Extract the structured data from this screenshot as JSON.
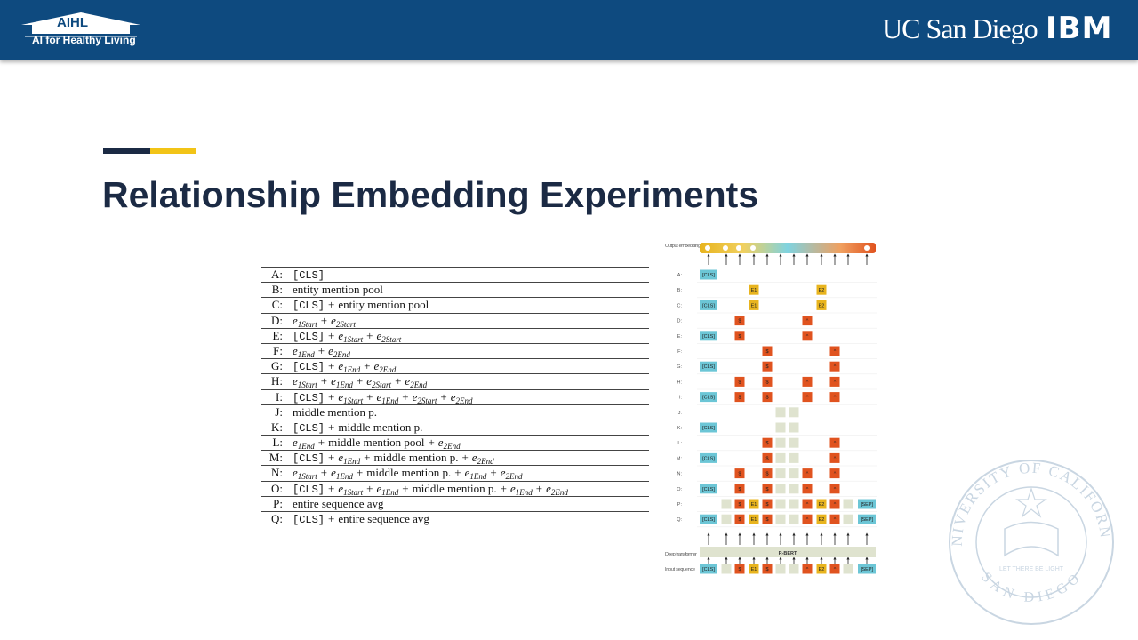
{
  "header": {
    "logo_title": "AIHL",
    "logo_subtitle": "AI for Healthy Living",
    "university": "UC San Diego",
    "company": "IBM"
  },
  "title": "Relationship Embedding Experiments",
  "table": {
    "rows": [
      {
        "label": "A:",
        "terms": [
          "[CLS]"
        ]
      },
      {
        "label": "B:",
        "terms": [
          "entity mention pool"
        ]
      },
      {
        "label": "C:",
        "terms": [
          "[CLS]",
          "entity mention pool"
        ]
      },
      {
        "label": "D:",
        "terms": [
          {
            "base": "e",
            "sub": "1Start"
          },
          {
            "base": "e",
            "sub": "2Start"
          }
        ]
      },
      {
        "label": "E:",
        "terms": [
          "[CLS]",
          {
            "base": "e",
            "sub": "1Start"
          },
          {
            "base": "e",
            "sub": "2Start"
          }
        ]
      },
      {
        "label": "F:",
        "terms": [
          {
            "base": "e",
            "sub": "1End"
          },
          {
            "base": "e",
            "sub": "2End"
          }
        ]
      },
      {
        "label": "G:",
        "terms": [
          "[CLS]",
          {
            "base": "e",
            "sub": "1End"
          },
          {
            "base": "e",
            "sub": "2End"
          }
        ]
      },
      {
        "label": "H:",
        "terms": [
          {
            "base": "e",
            "sub": "1Start"
          },
          {
            "base": "e",
            "sub": "1End"
          },
          {
            "base": "e",
            "sub": "2Start"
          },
          {
            "base": "e",
            "sub": "2End"
          }
        ]
      },
      {
        "label": "I:",
        "terms": [
          "[CLS]",
          {
            "base": "e",
            "sub": "1Start"
          },
          {
            "base": "e",
            "sub": "1End"
          },
          {
            "base": "e",
            "sub": "2Start"
          },
          {
            "base": "e",
            "sub": "2End"
          }
        ]
      },
      {
        "label": "J:",
        "terms": [
          "middle mention p."
        ]
      },
      {
        "label": "K:",
        "terms": [
          "[CLS]",
          "middle mention p."
        ]
      },
      {
        "label": "L:",
        "terms": [
          {
            "base": "e",
            "sub": "1End"
          },
          "middle mention pool",
          {
            "base": "e",
            "sub": "2End"
          }
        ]
      },
      {
        "label": "M:",
        "terms": [
          "[CLS]",
          {
            "base": "e",
            "sub": "1End"
          },
          "middle mention p.",
          {
            "base": "e",
            "sub": "2End"
          }
        ]
      },
      {
        "label": "N:",
        "terms": [
          {
            "base": "e",
            "sub": "1Start"
          },
          {
            "base": "e",
            "sub": "1End"
          },
          "middle mention p.",
          {
            "base": "e",
            "sub": "1End"
          },
          {
            "base": "e",
            "sub": "2End"
          }
        ]
      },
      {
        "label": "O:",
        "terms": [
          "[CLS]",
          {
            "base": "e",
            "sub": "1Start"
          },
          {
            "base": "e",
            "sub": "1End"
          },
          "middle mention p.",
          {
            "base": "e",
            "sub": "1End"
          },
          {
            "base": "e",
            "sub": "2End"
          }
        ]
      },
      {
        "label": "P:",
        "terms": [
          "entire sequence avg"
        ]
      },
      {
        "label": "Q:",
        "terms": [
          "[CLS]",
          "entire sequence avg"
        ]
      }
    ]
  },
  "diagram": {
    "output_label": "Output embedding",
    "transformer_label": "Deep transformer",
    "model_name": "R-BERT",
    "input_label": "Input sequence",
    "input_tokens": [
      "[CLS]",
      "$",
      "E1",
      "$",
      "^",
      "E2",
      "^",
      "[SEP]"
    ],
    "rows": [
      {
        "label": "A:",
        "tokens": [
          "[CLS]"
        ]
      },
      {
        "label": "B:",
        "tokens": [
          "E1",
          "E2"
        ]
      },
      {
        "label": "C:",
        "tokens": [
          "[CLS]",
          "E1",
          "E2"
        ]
      },
      {
        "label": "D:",
        "tokens": [
          "$",
          "^"
        ]
      },
      {
        "label": "E:",
        "tokens": [
          "[CLS]",
          "$",
          "^"
        ]
      },
      {
        "label": "F:",
        "tokens": [
          "$",
          "^"
        ]
      },
      {
        "label": "G:",
        "tokens": [
          "[CLS]",
          "$",
          "^"
        ]
      },
      {
        "label": "H:",
        "tokens": [
          "$",
          "$",
          "^",
          "^"
        ]
      },
      {
        "label": "I:",
        "tokens": [
          "[CLS]",
          "$",
          "$",
          "^",
          "^"
        ]
      },
      {
        "label": "J:",
        "tokens": []
      },
      {
        "label": "K:",
        "tokens": [
          "[CLS]"
        ]
      },
      {
        "label": "L:",
        "tokens": [
          "$",
          "^"
        ]
      },
      {
        "label": "M:",
        "tokens": [
          "[CLS]",
          "$",
          "^"
        ]
      },
      {
        "label": "N:",
        "tokens": [
          "$",
          "$",
          "^",
          "^"
        ]
      },
      {
        "label": "O:",
        "tokens": [
          "[CLS]",
          "$",
          "$",
          "^",
          "^"
        ]
      },
      {
        "label": "P:",
        "tokens": [
          "$",
          "E1",
          "$",
          "^",
          "E2",
          "^",
          "[SEP]"
        ]
      },
      {
        "label": "Q:",
        "tokens": [
          "[CLS]",
          "$",
          "E1",
          "$",
          "^",
          "E2",
          "^",
          "[SEP]"
        ]
      }
    ]
  },
  "seal": {
    "ring_top": "UNIVERSITY OF CALIFORNIA",
    "ring_bottom": "SAN DIEGO",
    "motto": "LET THERE BE LIGHT"
  }
}
